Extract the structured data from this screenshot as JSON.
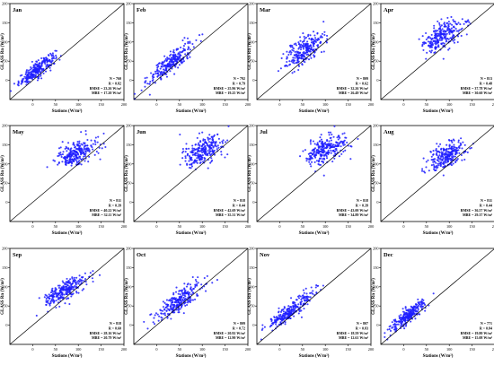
{
  "figure": {
    "ylabel": "GLASS Rn (W/m²)",
    "xlabel": "Stations (W/m²)",
    "ticks": [
      0,
      50,
      100,
      150,
      200
    ],
    "axis_range": [
      -50,
      200
    ],
    "point_color": "#1f1fff"
  },
  "chart_data": [
    {
      "type": "scatter",
      "month": "Jan",
      "stats": [
        "N = 760",
        "R = 0.82",
        "RMSE = 23.26 W/m²",
        "MBE = 17.20 W/m²"
      ],
      "xlim": [
        -50,
        200
      ],
      "ylim": [
        -50,
        200
      ],
      "cluster": {
        "x_mean": 10,
        "x_sd": 20,
        "y_mean": 28,
        "y_sd": 10,
        "slope": 0.85
      }
    },
    {
      "type": "scatter",
      "month": "Feb",
      "stats": [
        "N = 792",
        "R = 0.79",
        "RMSE = 25.96 W/m²",
        "MBE = 19.25 W/m²"
      ],
      "xlim": [
        -50,
        200
      ],
      "ylim": [
        -50,
        200
      ],
      "cluster": {
        "x_mean": 30,
        "x_sd": 25,
        "y_mean": 45,
        "y_sd": 14,
        "slope": 0.9
      }
    },
    {
      "type": "scatter",
      "month": "Mar",
      "stats": [
        "N = 809",
        "R = 0.62",
        "RMSE = 32.26 W/m²",
        "MBE = 26.49 W/m²"
      ],
      "xlim": [
        -50,
        200
      ],
      "ylim": [
        -50,
        200
      ],
      "cluster": {
        "x_mean": 55,
        "x_sd": 22,
        "y_mean": 78,
        "y_sd": 18,
        "slope": 0.7
      }
    },
    {
      "type": "scatter",
      "month": "Apr",
      "stats": [
        "N = 813",
        "R = 0.48",
        "RMSE = 37.78 W/m²",
        "MBE = 30.60 W/m²"
      ],
      "xlim": [
        -50,
        200
      ],
      "ylim": [
        -50,
        200
      ],
      "cluster": {
        "x_mean": 85,
        "x_sd": 22,
        "y_mean": 115,
        "y_sd": 18,
        "slope": 0.5
      }
    },
    {
      "type": "scatter",
      "month": "May",
      "stats": [
        "N = 811",
        "R = 0.39",
        "RMSE = 40.22 W/m²",
        "MBE = 32.11 W/m²"
      ],
      "xlim": [
        -50,
        200
      ],
      "ylim": [
        -50,
        200
      ],
      "cluster": {
        "x_mean": 95,
        "x_sd": 22,
        "y_mean": 128,
        "y_sd": 16,
        "slope": 0.35
      }
    },
    {
      "type": "scatter",
      "month": "Jun",
      "stats": [
        "N = 818",
        "R = 0.44",
        "RMSE = 42.69 W/m²",
        "MBE = 35.31 W/m²"
      ],
      "xlim": [
        -50,
        200
      ],
      "ylim": [
        -50,
        200
      ],
      "cluster": {
        "x_mean": 100,
        "x_sd": 22,
        "y_mean": 135,
        "y_sd": 17,
        "slope": 0.4
      }
    },
    {
      "type": "scatter",
      "month": "Jul",
      "stats": [
        "N = 818",
        "R = 0.39",
        "RMSE = 43.00 W/m²",
        "MBE = 34.89 W/m²"
      ],
      "xlim": [
        -50,
        200
      ],
      "ylim": [
        -50,
        200
      ],
      "cluster": {
        "x_mean": 100,
        "x_sd": 22,
        "y_mean": 138,
        "y_sd": 16,
        "slope": 0.35
      }
    },
    {
      "type": "scatter",
      "month": "Aug",
      "stats": [
        "N = 811",
        "R = 0.44",
        "RMSE = 36.57 W/m²",
        "MBE = 29.37 W/m²"
      ],
      "xlim": [
        -50,
        200
      ],
      "ylim": [
        -50,
        200
      ],
      "cluster": {
        "x_mean": 95,
        "x_sd": 20,
        "y_mean": 122,
        "y_sd": 16,
        "slope": 0.4
      }
    },
    {
      "type": "scatter",
      "month": "Sep",
      "stats": [
        "N = 818",
        "R = 0.60",
        "RMSE = 28.16 W/m²",
        "MBE = 20.79 W/m²"
      ],
      "xlim": [
        -50,
        200
      ],
      "ylim": [
        -50,
        200
      ],
      "cluster": {
        "x_mean": 70,
        "x_sd": 22,
        "y_mean": 90,
        "y_sd": 14,
        "slope": 0.6
      }
    },
    {
      "type": "scatter",
      "month": "Oct",
      "stats": [
        "N = 809",
        "R = 0.72",
        "RMSE = 20.92 W/m²",
        "MBE = 12.90 W/m²"
      ],
      "xlim": [
        -50,
        200
      ],
      "ylim": [
        -50,
        200
      ],
      "cluster": {
        "x_mean": 50,
        "x_sd": 25,
        "y_mean": 62,
        "y_sd": 14,
        "slope": 0.8
      }
    },
    {
      "type": "scatter",
      "month": "Nov",
      "stats": [
        "N = 807",
        "R = 0.83",
        "RMSE = 18.59 W/m²",
        "MBE = 12.61 W/m²"
      ],
      "xlim": [
        -50,
        200
      ],
      "ylim": [
        -50,
        200
      ],
      "cluster": {
        "x_mean": 25,
        "x_sd": 25,
        "y_mean": 38,
        "y_sd": 11,
        "slope": 0.9
      }
    },
    {
      "type": "scatter",
      "month": "Dec",
      "stats": [
        "N = 771",
        "R = 0.84",
        "RMSE = 19.80 W/m²",
        "MBE = 15.08 W/m²"
      ],
      "xlim": [
        -50,
        200
      ],
      "ylim": [
        -50,
        200
      ],
      "cluster": {
        "x_mean": 10,
        "x_sd": 20,
        "y_mean": 25,
        "y_sd": 10,
        "slope": 0.9
      }
    }
  ]
}
